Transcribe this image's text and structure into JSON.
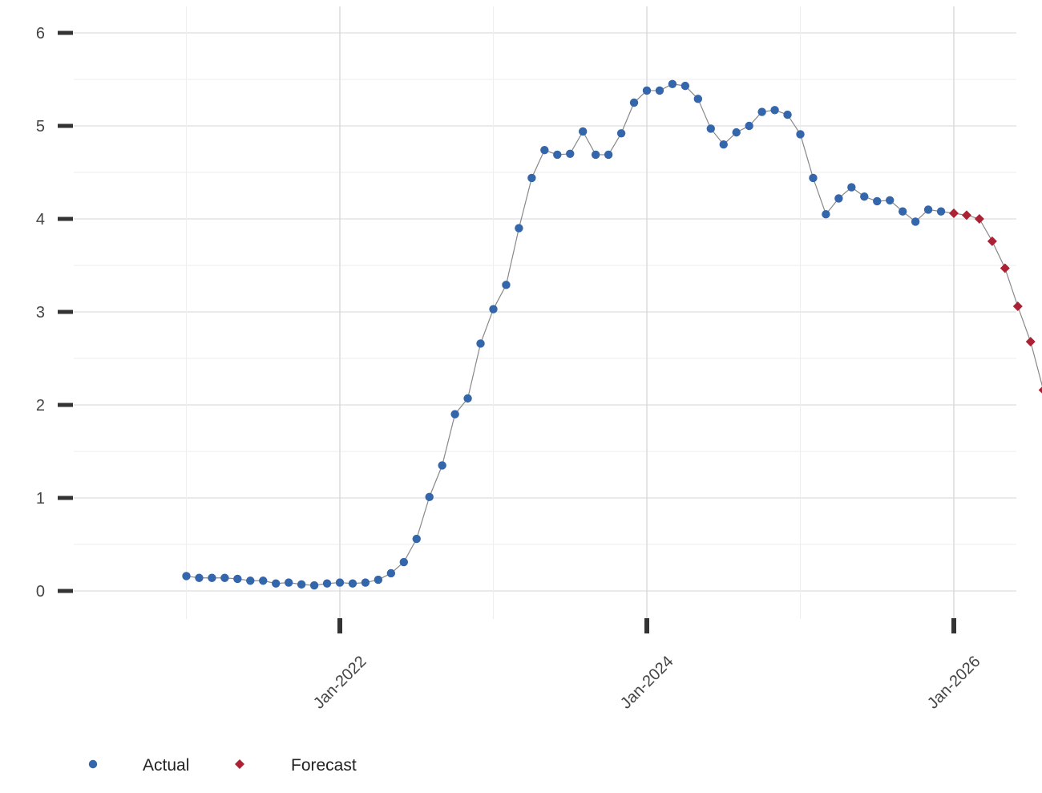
{
  "chart_data": {
    "type": "line",
    "title": "",
    "xlabel": "",
    "ylabel": "",
    "x_ticks": [
      "Jan-2022",
      "Jan-2024",
      "Jan-2026"
    ],
    "y_ticks": [
      0,
      1,
      2,
      3,
      4,
      5,
      6
    ],
    "ylim": [
      -0.3,
      6.3
    ],
    "xlim": [
      "2020-06",
      "2026-04"
    ],
    "grid": true,
    "legend": {
      "placement": "bottom-left",
      "entries": [
        {
          "label": "Actual",
          "color": "#3366aa",
          "marker": "circle"
        },
        {
          "label": "Forecast",
          "color": "#aa2233",
          "marker": "diamond"
        }
      ]
    },
    "line_color": "#888888",
    "series": [
      {
        "name": "Actual",
        "color": "#3366aa",
        "marker": "circle",
        "points": [
          [
            "2021-01",
            0.16
          ],
          [
            "2021-02",
            0.14
          ],
          [
            "2021-03",
            0.14
          ],
          [
            "2021-04",
            0.14
          ],
          [
            "2021-05",
            0.13
          ],
          [
            "2021-06",
            0.11
          ],
          [
            "2021-07",
            0.11
          ],
          [
            "2021-08",
            0.08
          ],
          [
            "2021-09",
            0.09
          ],
          [
            "2021-10",
            0.07
          ],
          [
            "2021-11",
            0.06
          ],
          [
            "2021-12",
            0.08
          ],
          [
            "2022-01",
            0.09
          ],
          [
            "2022-02",
            0.08
          ],
          [
            "2022-03",
            0.09
          ],
          [
            "2022-04",
            0.12
          ],
          [
            "2022-05",
            0.19
          ],
          [
            "2022-06",
            0.31
          ],
          [
            "2022-07",
            0.56
          ],
          [
            "2022-08",
            1.01
          ],
          [
            "2022-09",
            1.35
          ],
          [
            "2022-10",
            1.9
          ],
          [
            "2022-11",
            2.07
          ],
          [
            "2022-12",
            2.66
          ],
          [
            "2023-01",
            3.03
          ],
          [
            "2023-02",
            3.29
          ],
          [
            "2023-03",
            3.9
          ],
          [
            "2023-04",
            4.44
          ],
          [
            "2023-05",
            4.74
          ],
          [
            "2023-06",
            4.69
          ],
          [
            "2023-07",
            4.7
          ],
          [
            "2023-08",
            4.94
          ],
          [
            "2023-09",
            4.69
          ],
          [
            "2023-10",
            4.69
          ],
          [
            "2023-11",
            4.92
          ],
          [
            "2023-12",
            5.25
          ],
          [
            "2024-01",
            5.38
          ],
          [
            "2024-02",
            5.38
          ],
          [
            "2024-03",
            5.45
          ],
          [
            "2024-04",
            5.43
          ],
          [
            "2024-05",
            5.29
          ],
          [
            "2024-06",
            4.97
          ],
          [
            "2024-07",
            4.8
          ],
          [
            "2024-08",
            4.93
          ],
          [
            "2024-09",
            5.0
          ],
          [
            "2024-10",
            5.15
          ],
          [
            "2024-11",
            5.17
          ],
          [
            "2024-12",
            5.12
          ],
          [
            "2025-01",
            4.91
          ],
          [
            "2025-02",
            4.44
          ],
          [
            "2025-03",
            4.05
          ],
          [
            "2025-04",
            4.22
          ],
          [
            "2025-05",
            4.34
          ],
          [
            "2025-06",
            4.24
          ],
          [
            "2025-07",
            4.19
          ],
          [
            "2025-08",
            4.2
          ],
          [
            "2025-09",
            4.08
          ],
          [
            "2025-10",
            3.97
          ],
          [
            "2025-11",
            4.1
          ],
          [
            "2025-12",
            4.08
          ]
        ]
      },
      {
        "name": "Forecast",
        "color": "#aa2233",
        "marker": "diamond",
        "points": [
          [
            "2026-01",
            4.06
          ],
          [
            "2026-02",
            4.04
          ],
          [
            "2026-03",
            4.0
          ],
          [
            "2026-04",
            3.76
          ],
          [
            "2026-05",
            3.47
          ],
          [
            "2026-06",
            3.06
          ],
          [
            "2026-07",
            2.68
          ],
          [
            "2026-08",
            2.16
          ]
        ]
      }
    ]
  }
}
